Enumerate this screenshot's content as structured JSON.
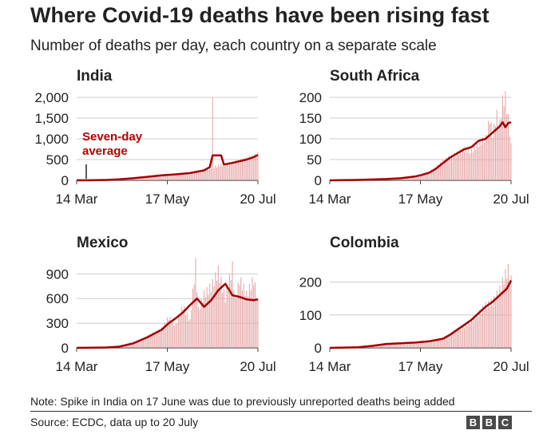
{
  "title": "Where Covid-19 deaths have been rising fast",
  "subtitle": "Number of deaths per day, each country on a separate scale",
  "note": "Note: Spike in India on 17 June was due to previously unreported deaths being added",
  "source": "Source: ECDC, data up to 20 July",
  "logo_letters": [
    "B",
    "B",
    "C"
  ],
  "colors": {
    "bar": "#e6a6a6",
    "line": "#a30000",
    "annotation": "#b80000",
    "grid": "#cccccc"
  },
  "chart_data": [
    {
      "type": "bar",
      "title": "India",
      "x_tick_labels": [
        "14 Mar",
        "17 May",
        "20 Jul"
      ],
      "x_tick_days": [
        0,
        64,
        128
      ],
      "yticks": [
        0,
        500,
        1000,
        1500,
        2000
      ],
      "ytick_labels": [
        "0",
        "500",
        "1,000",
        "1,500",
        "2,000"
      ],
      "ylim": [
        0,
        2000
      ],
      "annotation": "Seven-day average",
      "annotation_lines": [
        "Seven-day",
        "average"
      ],
      "bar_days": [
        0,
        10,
        20,
        30,
        40,
        50,
        60,
        70,
        80,
        90,
        95,
        96,
        97,
        100,
        105,
        110,
        115,
        120,
        125,
        128
      ],
      "bar_values": [
        0,
        2,
        10,
        30,
        60,
        90,
        130,
        150,
        180,
        250,
        330,
        2003,
        340,
        380,
        420,
        460,
        500,
        560,
        620,
        680
      ],
      "avg_days": [
        0,
        10,
        20,
        30,
        40,
        50,
        60,
        70,
        80,
        90,
        94,
        96,
        102,
        104,
        110,
        115,
        120,
        125,
        128
      ],
      "avg_values": [
        0,
        2,
        8,
        25,
        50,
        85,
        120,
        145,
        175,
        240,
        320,
        600,
        600,
        380,
        420,
        460,
        500,
        560,
        610
      ]
    },
    {
      "type": "bar",
      "title": "South Africa",
      "x_tick_labels": [
        "14 Mar",
        "17 May",
        "20 Jul"
      ],
      "x_tick_days": [
        0,
        64,
        128
      ],
      "yticks": [
        0,
        50,
        100,
        150,
        200
      ],
      "ytick_labels": [
        "0",
        "50",
        "100",
        "150",
        "200"
      ],
      "ylim": [
        0,
        200
      ],
      "bar_days": [
        0,
        20,
        40,
        50,
        60,
        65,
        70,
        75,
        80,
        85,
        90,
        95,
        100,
        105,
        110,
        113,
        115,
        118,
        120,
        122,
        124,
        126,
        128
      ],
      "bar_values": [
        0,
        1,
        4,
        6,
        10,
        15,
        20,
        35,
        50,
        60,
        70,
        80,
        75,
        95,
        110,
        160,
        120,
        170,
        145,
        205,
        215,
        160,
        90
      ],
      "avg_days": [
        0,
        20,
        40,
        50,
        60,
        65,
        70,
        75,
        80,
        85,
        90,
        95,
        100,
        105,
        110,
        115,
        120,
        122,
        124,
        126,
        128
      ],
      "avg_values": [
        0,
        1,
        3,
        5,
        9,
        13,
        18,
        28,
        42,
        55,
        65,
        75,
        80,
        95,
        100,
        115,
        130,
        140,
        128,
        138,
        140
      ]
    },
    {
      "type": "bar",
      "title": "Mexico",
      "x_tick_labels": [
        "14 Mar",
        "17 May",
        "20 Jul"
      ],
      "x_tick_days": [
        0,
        64,
        128
      ],
      "yticks": [
        0,
        300,
        600,
        900
      ],
      "ytick_labels": [
        "0",
        "300",
        "600",
        "900"
      ],
      "ylim": [
        0,
        1000
      ],
      "bar_days": [
        0,
        20,
        30,
        40,
        50,
        60,
        65,
        70,
        75,
        80,
        84,
        86,
        90,
        95,
        100,
        105,
        110,
        112,
        115,
        120,
        125,
        128
      ],
      "bar_values": [
        0,
        5,
        20,
        60,
        150,
        250,
        400,
        300,
        550,
        350,
        1090,
        500,
        700,
        800,
        1000,
        650,
        1050,
        600,
        900,
        700,
        900,
        600
      ],
      "avg_days": [
        0,
        20,
        30,
        40,
        50,
        60,
        65,
        70,
        75,
        80,
        85,
        90,
        95,
        100,
        105,
        110,
        115,
        120,
        125,
        128
      ],
      "avg_values": [
        0,
        4,
        15,
        55,
        130,
        220,
        300,
        360,
        430,
        520,
        600,
        500,
        580,
        700,
        780,
        640,
        620,
        590,
        580,
        590
      ]
    },
    {
      "type": "bar",
      "title": "Colombia",
      "x_tick_labels": [
        "14 Mar",
        "17 May",
        "20 Jul"
      ],
      "x_tick_days": [
        0,
        64,
        128
      ],
      "yticks": [
        0,
        100,
        200
      ],
      "ytick_labels": [
        "0",
        "100",
        "200"
      ],
      "ylim": [
        0,
        250
      ],
      "bar_days": [
        0,
        20,
        30,
        40,
        50,
        60,
        70,
        80,
        85,
        90,
        95,
        100,
        105,
        110,
        115,
        120,
        124,
        126,
        128
      ],
      "bar_values": [
        0,
        2,
        5,
        10,
        15,
        18,
        22,
        30,
        45,
        60,
        70,
        90,
        110,
        140,
        150,
        190,
        240,
        255,
        220
      ],
      "avg_days": [
        0,
        20,
        30,
        40,
        50,
        60,
        70,
        80,
        85,
        90,
        95,
        100,
        105,
        110,
        115,
        120,
        125,
        128
      ],
      "avg_values": [
        0,
        2,
        6,
        12,
        14,
        16,
        20,
        28,
        40,
        55,
        70,
        85,
        105,
        125,
        140,
        160,
        180,
        205
      ]
    }
  ]
}
